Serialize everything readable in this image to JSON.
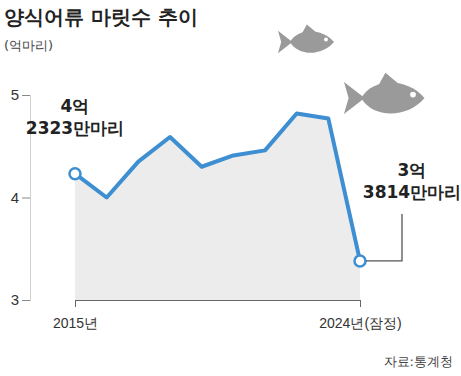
{
  "chart_data": {
    "type": "line",
    "title": "양식어류 마릿수 추이",
    "y_label": "(억마리)",
    "source": "자료:통계청",
    "categories": [
      "2015년",
      null,
      null,
      null,
      null,
      null,
      null,
      null,
      null,
      "2024년(잠정)"
    ],
    "values": [
      4.2323,
      4.0,
      4.35,
      4.59,
      4.3,
      4.41,
      4.46,
      4.82,
      4.77,
      3.3814
    ],
    "color": "#3d8fd1",
    "ylim": [
      3,
      5
    ],
    "yticks": [
      3,
      4,
      5
    ],
    "grid": false,
    "annotations": [
      {
        "text": [
          "4억",
          "2323만마리"
        ],
        "x": "2015년"
      },
      {
        "text": [
          "3억",
          "3814만마리"
        ],
        "x": "2024년(잠정)"
      }
    ]
  }
}
